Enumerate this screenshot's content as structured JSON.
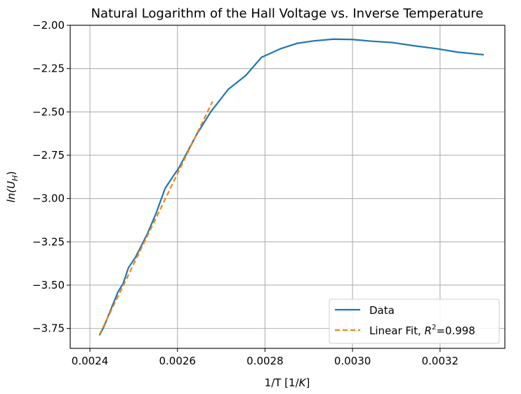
{
  "chart_data": {
    "type": "line",
    "title": "Natural Logarithm of the Hall Voltage vs. Inverse Temperature",
    "xlabel_main": "1/T [1/",
    "xlabel_italic": "K",
    "xlabel_end": "]",
    "ylabel_main": "ln(U",
    "ylabel_sub": "H",
    "ylabel_end": ")",
    "xlim": [
      0.002355,
      0.003348
    ],
    "ylim": [
      -3.865,
      -2.0
    ],
    "x_ticks": [
      0.0024,
      0.0026,
      0.0028,
      0.003,
      0.0032
    ],
    "x_tick_labels": [
      "0.0024",
      "0.0026",
      "0.0028",
      "0.0030",
      "0.0032"
    ],
    "y_ticks": [
      -2.0,
      -2.25,
      -2.5,
      -2.75,
      -3.0,
      -3.25,
      -3.5,
      -3.75
    ],
    "y_tick_labels": [
      "−2.00",
      "−2.25",
      "−2.50",
      "−2.75",
      "−3.00",
      "−3.25",
      "−3.50",
      "−3.75"
    ],
    "grid": true,
    "legend_position": "lower-right",
    "series": [
      {
        "name": "Data",
        "color": "#1f77b4",
        "style": "solid",
        "x": [
          0.002422,
          0.002432,
          0.00244,
          0.002448,
          0.002464,
          0.002476,
          0.002488,
          0.002504,
          0.002516,
          0.002532,
          0.002552,
          0.002572,
          0.002604,
          0.002644,
          0.002676,
          0.002716,
          0.002756,
          0.002792,
          0.002836,
          0.002872,
          0.002912,
          0.002956,
          0.003,
          0.003044,
          0.003092,
          0.00314,
          0.003192,
          0.00324,
          0.0033
        ],
        "y": [
          -3.79,
          -3.74,
          -3.69,
          -3.64,
          -3.54,
          -3.49,
          -3.4,
          -3.34,
          -3.28,
          -3.2,
          -3.08,
          -2.94,
          -2.82,
          -2.63,
          -2.5,
          -2.37,
          -2.29,
          -2.185,
          -2.135,
          -2.105,
          -2.09,
          -2.08,
          -2.082,
          -2.092,
          -2.1,
          -2.118,
          -2.135,
          -2.155,
          -2.17
        ]
      },
      {
        "name": "Linear Fit, R²=0.998",
        "name_main": "Linear Fit, ",
        "name_r": "R",
        "name_sup": "2",
        "name_end": "=0.998",
        "color": "#ff7f0e",
        "style": "dashed",
        "x": [
          0.002422,
          0.00268
        ],
        "y": [
          -3.785,
          -2.44
        ]
      }
    ]
  }
}
